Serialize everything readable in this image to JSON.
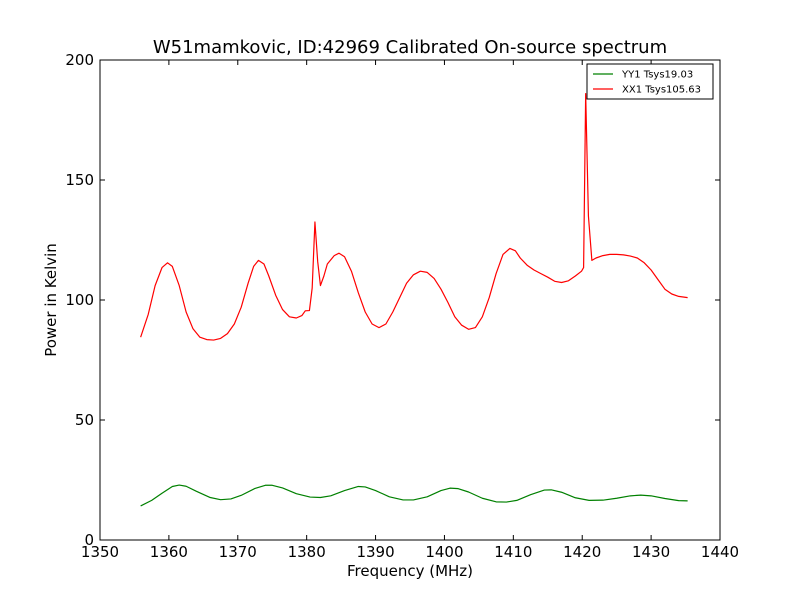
{
  "chart_data": {
    "type": "line",
    "title": "W51mamkovic, ID:42969 Calibrated On-source spectrum",
    "xlabel": "Frequency (MHz)",
    "ylabel": "Power in Kelvin",
    "xlim": [
      1350,
      1440
    ],
    "ylim": [
      0,
      200
    ],
    "x_ticks": [
      "1350",
      "1360",
      "1370",
      "1380",
      "1390",
      "1400",
      "1410",
      "1420",
      "1430",
      "1440"
    ],
    "y_ticks": [
      "0",
      "50",
      "100",
      "150",
      "200"
    ],
    "grid": false,
    "legend_position": "top-right",
    "series": [
      {
        "name": "YY1 Tsys19.03",
        "color": "#008000",
        "points": [
          [
            1355.9,
            14.2
          ],
          [
            1357.5,
            16.5
          ],
          [
            1359.0,
            19.5
          ],
          [
            1360.5,
            22.3
          ],
          [
            1361.5,
            22.9
          ],
          [
            1362.5,
            22.4
          ],
          [
            1364.0,
            20.3
          ],
          [
            1366.0,
            17.7
          ],
          [
            1367.5,
            16.8
          ],
          [
            1369.0,
            17.1
          ],
          [
            1370.5,
            18.6
          ],
          [
            1372.5,
            21.5
          ],
          [
            1374.0,
            22.8
          ],
          [
            1375.0,
            22.8
          ],
          [
            1376.5,
            21.7
          ],
          [
            1378.5,
            19.3
          ],
          [
            1380.5,
            17.9
          ],
          [
            1382.0,
            17.7
          ],
          [
            1383.5,
            18.4
          ],
          [
            1385.5,
            20.6
          ],
          [
            1387.5,
            22.3
          ],
          [
            1388.5,
            22.1
          ],
          [
            1390.0,
            20.6
          ],
          [
            1392.0,
            18.0
          ],
          [
            1394.0,
            16.7
          ],
          [
            1395.5,
            16.7
          ],
          [
            1397.5,
            18.0
          ],
          [
            1399.5,
            20.6
          ],
          [
            1400.8,
            21.6
          ],
          [
            1402.0,
            21.4
          ],
          [
            1403.5,
            20.0
          ],
          [
            1405.5,
            17.4
          ],
          [
            1407.5,
            15.9
          ],
          [
            1409.0,
            15.8
          ],
          [
            1410.5,
            16.5
          ],
          [
            1412.5,
            18.9
          ],
          [
            1414.5,
            20.8
          ],
          [
            1415.5,
            20.9
          ],
          [
            1417.0,
            19.9
          ],
          [
            1419.0,
            17.6
          ],
          [
            1421.0,
            16.5
          ],
          [
            1423.0,
            16.6
          ],
          [
            1425.0,
            17.4
          ],
          [
            1427.0,
            18.4
          ],
          [
            1428.5,
            18.7
          ],
          [
            1430.0,
            18.4
          ],
          [
            1432.0,
            17.3
          ],
          [
            1434.0,
            16.4
          ],
          [
            1435.3,
            16.3
          ]
        ]
      },
      {
        "name": "XX1 Tsys105.63",
        "color": "#ff0000",
        "points": [
          [
            1355.9,
            84.5
          ],
          [
            1357.0,
            94.0
          ],
          [
            1358.0,
            106.0
          ],
          [
            1359.0,
            113.5
          ],
          [
            1359.8,
            115.5
          ],
          [
            1360.5,
            114.0
          ],
          [
            1361.5,
            106.0
          ],
          [
            1362.5,
            95.0
          ],
          [
            1363.5,
            88.0
          ],
          [
            1364.5,
            84.5
          ],
          [
            1365.5,
            83.5
          ],
          [
            1366.5,
            83.3
          ],
          [
            1367.5,
            84.0
          ],
          [
            1368.5,
            86.0
          ],
          [
            1369.5,
            90.0
          ],
          [
            1370.5,
            97.0
          ],
          [
            1371.5,
            107.0
          ],
          [
            1372.3,
            114.0
          ],
          [
            1373.0,
            116.5
          ],
          [
            1373.8,
            115.0
          ],
          [
            1374.5,
            110.0
          ],
          [
            1375.5,
            102.0
          ],
          [
            1376.5,
            96.0
          ],
          [
            1377.5,
            93.0
          ],
          [
            1378.5,
            92.5
          ],
          [
            1379.3,
            93.5
          ],
          [
            1379.8,
            95.5
          ],
          [
            1380.4,
            95.6
          ],
          [
            1380.8,
            105.0
          ],
          [
            1381.2,
            132.5
          ],
          [
            1381.6,
            116.0
          ],
          [
            1382.0,
            106.0
          ],
          [
            1382.5,
            110.0
          ],
          [
            1383.0,
            115.0
          ],
          [
            1384.0,
            118.5
          ],
          [
            1384.7,
            119.5
          ],
          [
            1385.5,
            118.0
          ],
          [
            1386.5,
            112.0
          ],
          [
            1387.5,
            103.0
          ],
          [
            1388.5,
            95.0
          ],
          [
            1389.5,
            90.0
          ],
          [
            1390.5,
            88.5
          ],
          [
            1391.5,
            90.0
          ],
          [
            1392.5,
            95.0
          ],
          [
            1393.5,
            101.0
          ],
          [
            1394.5,
            107.0
          ],
          [
            1395.5,
            110.5
          ],
          [
            1396.5,
            112.0
          ],
          [
            1397.5,
            111.5
          ],
          [
            1398.5,
            109.0
          ],
          [
            1399.5,
            104.5
          ],
          [
            1400.5,
            99.0
          ],
          [
            1401.5,
            93.0
          ],
          [
            1402.5,
            89.5
          ],
          [
            1403.5,
            87.8
          ],
          [
            1404.5,
            88.5
          ],
          [
            1405.5,
            93.0
          ],
          [
            1406.5,
            101.0
          ],
          [
            1407.5,
            111.0
          ],
          [
            1408.5,
            119.0
          ],
          [
            1409.5,
            121.5
          ],
          [
            1410.3,
            120.5
          ],
          [
            1411.0,
            117.5
          ],
          [
            1412.0,
            114.5
          ],
          [
            1413.0,
            112.5
          ],
          [
            1414.0,
            111.0
          ],
          [
            1415.0,
            109.5
          ],
          [
            1416.0,
            107.8
          ],
          [
            1417.0,
            107.3
          ],
          [
            1418.0,
            108.0
          ],
          [
            1419.0,
            110.0
          ],
          [
            1419.9,
            112.0
          ],
          [
            1420.2,
            113.5
          ],
          [
            1420.5,
            186.0
          ],
          [
            1420.9,
            135.0
          ],
          [
            1421.4,
            116.5
          ],
          [
            1422.0,
            117.5
          ],
          [
            1423.0,
            118.5
          ],
          [
            1424.0,
            119.0
          ],
          [
            1425.0,
            119.0
          ],
          [
            1426.0,
            118.8
          ],
          [
            1427.0,
            118.3
          ],
          [
            1428.0,
            117.5
          ],
          [
            1429.0,
            115.5
          ],
          [
            1430.0,
            112.5
          ],
          [
            1431.0,
            108.5
          ],
          [
            1432.0,
            104.5
          ],
          [
            1433.0,
            102.5
          ],
          [
            1434.0,
            101.5
          ],
          [
            1435.3,
            101.0
          ]
        ]
      }
    ]
  }
}
